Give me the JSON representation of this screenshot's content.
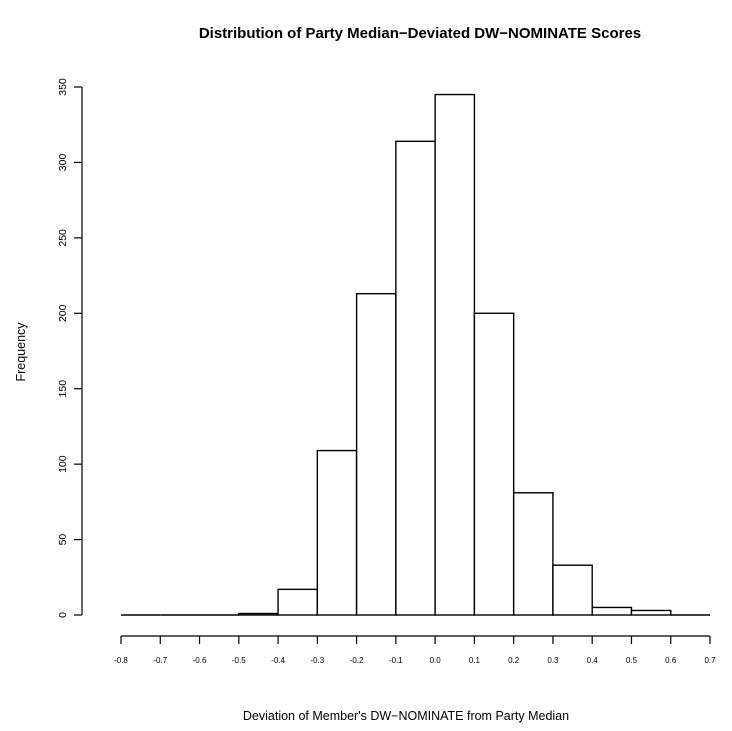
{
  "chart_data": {
    "type": "bar",
    "title": "Distribution of Party Median−Deviated DW−NOMINATE Scores",
    "xlabel": "Deviation of Member's DW−NOMINATE from Party Median",
    "ylabel": "Frequency",
    "bin_edges": [
      -0.8,
      -0.7,
      -0.6,
      -0.5,
      -0.4,
      -0.3,
      -0.2,
      -0.1,
      0.0,
      0.1,
      0.2,
      0.3,
      0.4,
      0.5,
      0.6,
      0.7
    ],
    "values": [
      0,
      0,
      0,
      1,
      17,
      109,
      213,
      314,
      345,
      200,
      81,
      33,
      5,
      3,
      0
    ],
    "xlim": [
      -0.8,
      0.7
    ],
    "ylim": [
      0,
      350
    ],
    "x_ticks": [
      -0.8,
      -0.7,
      -0.6,
      -0.5,
      -0.4,
      -0.3,
      -0.2,
      -0.1,
      0.0,
      0.1,
      0.2,
      0.3,
      0.4,
      0.5,
      0.6,
      0.7
    ],
    "x_tick_labels": [
      "-0.8",
      "-0.7",
      "-0.6",
      "-0.5",
      "-0.4",
      "-0.3",
      "-0.2",
      "-0.1",
      "0.0",
      "0.1",
      "0.2",
      "0.3",
      "0.4",
      "0.5",
      "0.6",
      "0.7"
    ],
    "y_ticks": [
      0,
      50,
      100,
      150,
      200,
      250,
      300,
      350
    ],
    "y_tick_labels": [
      "0",
      "50",
      "100",
      "150",
      "200",
      "250",
      "300",
      "350"
    ],
    "grid": false,
    "legend": "none",
    "colors": {
      "bar_fill": "#ffffff",
      "bar_stroke": "#000000"
    }
  }
}
